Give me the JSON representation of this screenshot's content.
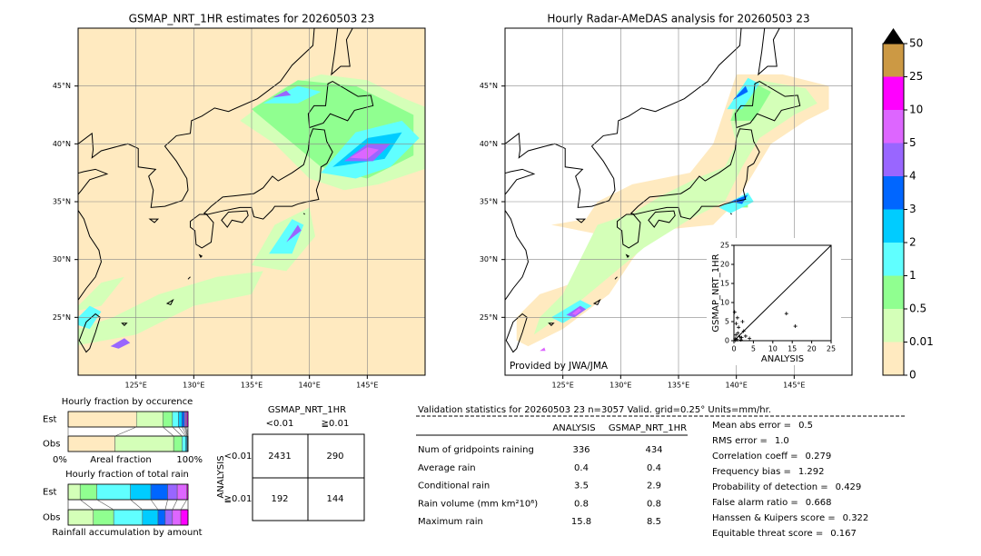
{
  "left_map": {
    "title": "GSMAP_NRT_1HR estimates for 20260503 23",
    "xlim": [
      120,
      150
    ],
    "ylim": [
      20,
      50
    ],
    "xticks": [
      {
        "value": 125,
        "label": "125°E"
      },
      {
        "value": 130,
        "label": "130°E"
      },
      {
        "value": 135,
        "label": "135°E"
      },
      {
        "value": 140,
        "label": "140°E"
      },
      {
        "value": 145,
        "label": "145°E"
      }
    ],
    "yticks": [
      {
        "value": 25,
        "label": "25°N"
      },
      {
        "value": 30,
        "label": "30°N"
      },
      {
        "value": 35,
        "label": "35°N"
      },
      {
        "value": 40,
        "label": "40°N"
      },
      {
        "value": 45,
        "label": "45°N"
      }
    ]
  },
  "right_map": {
    "title": "Hourly Radar-AMeDAS analysis for 20260503 23",
    "credit": "Provided by JWA/JMA",
    "xlim": [
      120,
      150
    ],
    "ylim": [
      20,
      50
    ],
    "xticks": [
      {
        "value": 125,
        "label": "125°E"
      },
      {
        "value": 130,
        "label": "130°E"
      },
      {
        "value": 135,
        "label": "135°E"
      },
      {
        "value": 140,
        "label": "140°E"
      },
      {
        "value": 145,
        "label": "145°E"
      }
    ],
    "yticks": [
      {
        "value": 25,
        "label": "25°N"
      },
      {
        "value": 30,
        "label": "30°N"
      },
      {
        "value": 35,
        "label": "35°N"
      },
      {
        "value": 40,
        "label": "40°N"
      },
      {
        "value": 45,
        "label": "45°N"
      }
    ]
  },
  "colorbar": {
    "levels": [
      0,
      0.01,
      0.5,
      1,
      2,
      3,
      4,
      5,
      10,
      25,
      50
    ],
    "colors": [
      "#ffeac0",
      "#d4ffb8",
      "#90ff90",
      "#60ffff",
      "#00ccff",
      "#0066ff",
      "#9966ff",
      "#dd66ff",
      "#ff00ff",
      "#cc9944"
    ],
    "extend_color": "#000000"
  },
  "scatter": {
    "type": "scatter",
    "xlabel": "ANALYSIS",
    "ylabel": "GSMAP_NRT_1HR",
    "xlim": [
      0,
      25
    ],
    "ylim": [
      0,
      25
    ],
    "xticks": [
      0,
      5,
      10,
      15,
      20,
      25
    ],
    "yticks": [
      0,
      5,
      10,
      15,
      20,
      25
    ],
    "x": [
      0.3,
      0.5,
      0.8,
      1.0,
      1.2,
      1.5,
      2.0,
      2.5,
      0.6,
      0.2,
      3.0,
      1.8,
      4.0,
      0.4,
      13.5,
      15.8,
      2.2,
      0.9
    ],
    "y": [
      0.5,
      1.5,
      0.3,
      2.0,
      3.5,
      1.0,
      0.8,
      2.5,
      4.5,
      7.5,
      1.2,
      0.2,
      0.6,
      0.1,
      7.1,
      3.8,
      5.0,
      6.0
    ]
  },
  "occurrence": {
    "title": "Hourly fraction by occurence",
    "rows": [
      "Est",
      "Obs"
    ],
    "values": [
      [
        57,
        22,
        8,
        5,
        3,
        2,
        1,
        1,
        1,
        0
      ],
      [
        39,
        49,
        7,
        3,
        1,
        0.5,
        0.3,
        0.2,
        0,
        0
      ]
    ],
    "xlabel": "Areal fraction",
    "left_label": "0%",
    "right_label": "100%"
  },
  "total_rain": {
    "title": "Hourly fraction of total rain",
    "rows": [
      "Est",
      "Obs"
    ],
    "values": [
      [
        0,
        10,
        14,
        28,
        17,
        14,
        8,
        8,
        1,
        0
      ],
      [
        0,
        21,
        17,
        24,
        13,
        6,
        6,
        7,
        6,
        0
      ]
    ],
    "xlabel": "Rainfall accumulation by amount"
  },
  "contingency": {
    "title": "GSMAP_NRT_1HR",
    "col_labels": [
      "<0.01",
      "≧0.01"
    ],
    "row_title": "ANALYSIS",
    "row_labels": [
      "<0.01",
      "≧0.01"
    ],
    "cells": [
      [
        2431,
        290
      ],
      [
        192,
        144
      ]
    ]
  },
  "validation": {
    "header": "Validation statistics for 20260503 23  n=3057 Valid. grid=0.25° Units=mm/hr.",
    "columns": [
      "ANALYSIS",
      "GSMAP_NRT_1HR"
    ],
    "rows": [
      {
        "label": "Num of gridpoints raining",
        "values": [
          336,
          434
        ]
      },
      {
        "label": "Average rain",
        "values": [
          0.4,
          0.4
        ]
      },
      {
        "label": "Conditional rain",
        "values": [
          3.5,
          2.9
        ]
      },
      {
        "label": "Rain volume (mm km²10⁶)",
        "values": [
          0.8,
          0.8
        ]
      },
      {
        "label": "Maximum rain",
        "values": [
          15.8,
          8.5
        ]
      }
    ],
    "scores": [
      {
        "label": "Mean abs error =",
        "value": 0.5
      },
      {
        "label": "RMS error =",
        "value": "1.0"
      },
      {
        "label": "Correlation coeff =",
        "value": 0.279
      },
      {
        "label": "Frequency bias =",
        "value": 1.292
      },
      {
        "label": "Probability of detection =",
        "value": 0.429
      },
      {
        "label": "False alarm ratio =",
        "value": 0.668
      },
      {
        "label": "Hanssen & Kuipers score =",
        "value": 0.322
      },
      {
        "label": "Equitable threat score =",
        "value": 0.167
      }
    ]
  }
}
